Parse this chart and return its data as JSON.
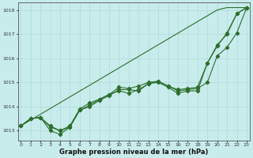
{
  "xlabel": "Graphe pression niveau de la mer (hPa)",
  "background_color": "#c8ecec",
  "grid_color": "#b0d8d8",
  "line_color": "#2d6e2d",
  "ylim": [
    1012.6,
    1018.3
  ],
  "xlim": [
    -0.3,
    23.3
  ],
  "yticks": [
    1013,
    1014,
    1015,
    1016,
    1017,
    1018
  ],
  "xticks": [
    0,
    1,
    2,
    3,
    4,
    5,
    6,
    7,
    8,
    9,
    10,
    11,
    12,
    13,
    14,
    15,
    16,
    17,
    18,
    19,
    20,
    21,
    22,
    23
  ],
  "series": [
    [
      1013.2,
      1013.5,
      1013.55,
      1013.2,
      1013.0,
      1013.15,
      1013.85,
      1014.05,
      1014.3,
      1014.5,
      1014.8,
      1014.75,
      1014.85,
      1015.0,
      1015.05,
      1014.85,
      1014.7,
      1014.75,
      1014.8,
      1015.8,
      1016.5,
      1017.05,
      1017.85,
      1018.1
    ],
    [
      1013.2,
      1013.5,
      1013.55,
      1013.15,
      1013.0,
      1013.2,
      1013.9,
      1014.15,
      1014.3,
      1014.5,
      1014.65,
      1014.55,
      1014.7,
      1014.95,
      1015.05,
      1014.85,
      1014.65,
      1014.7,
      1014.75,
      1015.0,
      1016.1,
      1016.45,
      1017.05,
      1018.1
    ],
    [
      1013.2,
      1013.5,
      1013.55,
      1013.0,
      1012.85,
      1013.15,
      1013.85,
      1014.0,
      1014.25,
      1014.45,
      1014.7,
      1014.7,
      1014.65,
      1014.95,
      1015.0,
      1014.8,
      1014.55,
      1014.65,
      1014.65,
      1015.8,
      1016.55,
      1017.0,
      1017.85,
      1018.1
    ],
    [
      1013.2,
      1013.44,
      1013.68,
      1013.92,
      1014.16,
      1014.4,
      1014.64,
      1014.88,
      1015.12,
      1015.36,
      1015.6,
      1015.84,
      1016.08,
      1016.32,
      1016.56,
      1016.8,
      1017.04,
      1017.28,
      1017.52,
      1017.76,
      1018.0,
      1018.1,
      1018.1,
      1018.1
    ]
  ],
  "xlabel_fontsize": 6.0,
  "xlabel_fontweight": "bold",
  "tick_fontsize": 4.5,
  "linewidth": 0.8,
  "markersize": 2.2
}
